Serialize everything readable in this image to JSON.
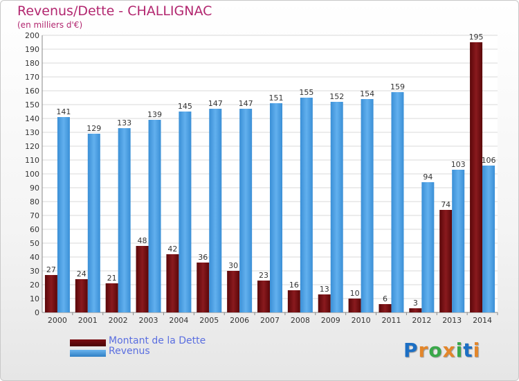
{
  "chart_data": {
    "type": "bar",
    "title": "Revenus/Dette - CHALLIGNAC",
    "subtitle": "(en milliers d'€)",
    "categories": [
      "2000",
      "2001",
      "2002",
      "2003",
      "2004",
      "2005",
      "2006",
      "2007",
      "2008",
      "2009",
      "2010",
      "2011",
      "2012",
      "2013",
      "2014"
    ],
    "series": [
      {
        "name": "Montant de la Dette",
        "color": "#7a0d12",
        "values": [
          27,
          24,
          21,
          48,
          42,
          36,
          30,
          23,
          16,
          13,
          10,
          6,
          3,
          74,
          195
        ]
      },
      {
        "name": "Revenus",
        "color": "#4aa0e4",
        "values": [
          141,
          129,
          133,
          139,
          145,
          147,
          147,
          151,
          155,
          152,
          154,
          159,
          94,
          103,
          106
        ]
      }
    ],
    "ylim": [
      0,
      200
    ],
    "ytick_step": 10,
    "grid": true,
    "legend_position": "bottom-left"
  },
  "branding": {
    "logo_text": "Proxiti",
    "logo_colors": [
      "#1c6fc4",
      "#e3862a",
      "#3aa84a",
      "#e3862a",
      "#3aa84a",
      "#1c6fc4",
      "#e3862a"
    ]
  }
}
